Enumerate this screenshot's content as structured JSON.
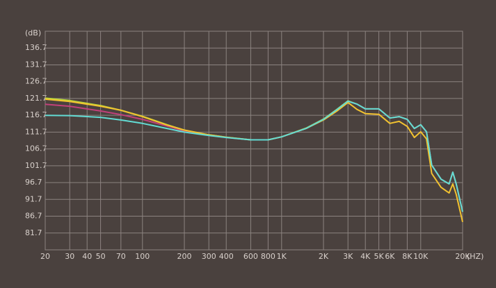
{
  "chart_data": {
    "type": "line",
    "y_label": "(dB)",
    "x_label": "(HZ)",
    "log_x": true,
    "grid": true,
    "xlim": [
      20,
      20000
    ],
    "xticks": [
      20,
      30,
      40,
      50,
      70,
      100,
      200,
      300,
      400,
      600,
      800,
      {
        "value": 1000,
        "label": "1K"
      },
      {
        "value": 2000,
        "label": "2K"
      },
      {
        "value": 3000,
        "label": "3K"
      },
      {
        "value": 4000,
        "label": "4K"
      },
      {
        "value": 5000,
        "label": "5K"
      },
      {
        "value": 6000,
        "label": "6K"
      },
      {
        "value": 8000,
        "label": "8K"
      },
      {
        "value": 10000,
        "label": "10K"
      },
      {
        "value": 20000,
        "label": "20K"
      }
    ],
    "ylim": [
      76.7,
      141.7
    ],
    "yticks": [
      81.7,
      86.7,
      91.7,
      96.7,
      101.7,
      106.7,
      111.7,
      116.7,
      121.7,
      126.7,
      131.7,
      136.7
    ],
    "x": [
      20,
      30,
      50,
      70,
      100,
      150,
      200,
      300,
      400,
      600,
      800,
      1000,
      1500,
      2000,
      2500,
      3000,
      3500,
      4000,
      5000,
      6000,
      7000,
      8000,
      9000,
      10000,
      11000,
      12000,
      14000,
      16000,
      17000,
      18000,
      20000
    ],
    "series": [
      {
        "color": "#b8d83a",
        "values": [
          121.8,
          121.1,
          119.6,
          118.2,
          116.4,
          113.9,
          112.3,
          110.9,
          110.2,
          109.4,
          109.4,
          110.3,
          112.9,
          115.6,
          118.5,
          121,
          120,
          118.6,
          118.6,
          115.9,
          116.3,
          115.5,
          112.8,
          113.9,
          111.8,
          101.9,
          97.7,
          96.3,
          99.8,
          96.3,
          88
        ]
      },
      {
        "color": "#c2407a",
        "values": [
          120,
          119.4,
          118,
          116.9,
          115.5,
          113.5,
          112,
          110.8,
          110.1,
          109.4,
          109.4,
          110.3,
          112.8,
          115.5,
          118.4,
          120.9,
          120,
          118.6,
          118.6,
          115.9,
          116.3,
          115.5,
          112.8,
          113.9,
          111.8,
          101.9,
          97.7,
          96.3,
          99.8,
          96.3,
          88
        ]
      },
      {
        "color": "#f2c230",
        "values": [
          121.5,
          120.8,
          119.4,
          118.2,
          116.3,
          113.8,
          112.3,
          110.9,
          110.2,
          109.4,
          109.4,
          110.3,
          112.8,
          115.3,
          118,
          120.5,
          118.4,
          117.2,
          117,
          114.3,
          114.9,
          113.4,
          110.1,
          111.8,
          109.7,
          99.4,
          95.3,
          93.6,
          96.3,
          93.2,
          85
        ]
      },
      {
        "color": "#62dcd4",
        "values": [
          116.7,
          116.6,
          116.1,
          115.3,
          114.3,
          112.8,
          111.7,
          110.7,
          110.1,
          109.4,
          109.4,
          110.3,
          112.8,
          115.5,
          118.4,
          120.9,
          120,
          118.6,
          118.6,
          115.9,
          116.3,
          115.5,
          112.8,
          113.9,
          111.8,
          101.9,
          97.7,
          96.3,
          99.8,
          96.3,
          88
        ]
      }
    ]
  }
}
